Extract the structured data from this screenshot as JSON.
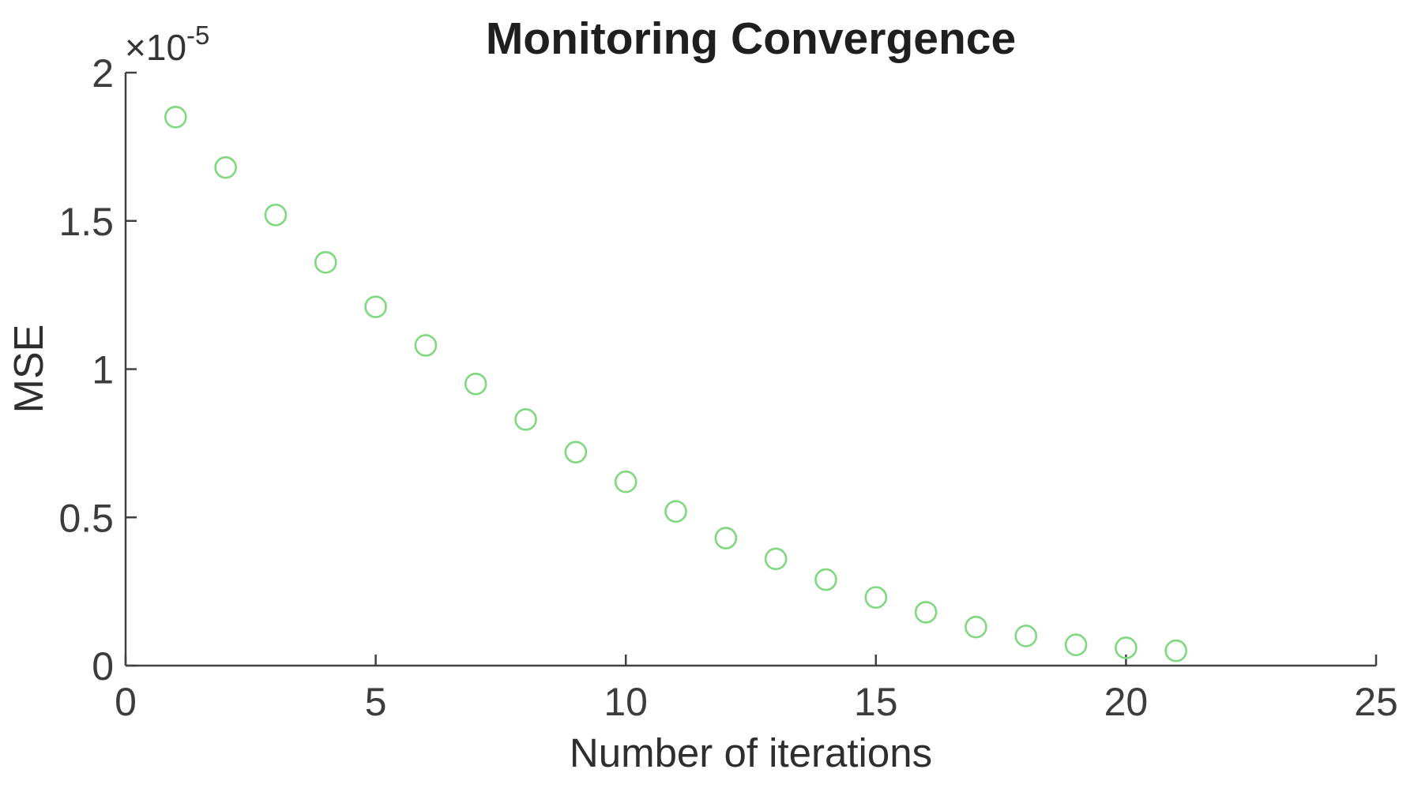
{
  "figure": {
    "title": "Monitoring Convergence",
    "background_color": "#ffffff",
    "axis_color": "#404040",
    "tick_text_color": "#3c3c3c",
    "y_axis": {
      "label": "MSE",
      "multiplier_base": "×10",
      "multiplier_exponent": "-5"
    },
    "x_axis": {
      "label": "Number of iterations"
    }
  },
  "chart_data": {
    "type": "scatter",
    "title": "Monitoring Convergence",
    "xlabel": "Number of iterations",
    "ylabel": "MSE",
    "y_unit_multiplier": "1e-5",
    "xlim": [
      0,
      25
    ],
    "ylim": [
      0,
      2
    ],
    "x_ticks": [
      0,
      5,
      10,
      15,
      20,
      25
    ],
    "y_ticks": [
      0,
      0.5,
      1,
      1.5,
      2
    ],
    "grid": false,
    "legend": "none",
    "marker": {
      "style": "open-circle",
      "color": "#7fd87f",
      "radius_px": 13,
      "stroke_px": 2.6
    },
    "x": [
      1,
      2,
      3,
      4,
      5,
      6,
      7,
      8,
      9,
      10,
      11,
      12,
      13,
      14,
      15,
      16,
      17,
      18,
      19,
      20,
      21
    ],
    "y": [
      1.85,
      1.68,
      1.52,
      1.36,
      1.21,
      1.08,
      0.95,
      0.83,
      0.72,
      0.62,
      0.52,
      0.43,
      0.36,
      0.29,
      0.23,
      0.18,
      0.13,
      0.1,
      0.07,
      0.06,
      0.05
    ]
  }
}
